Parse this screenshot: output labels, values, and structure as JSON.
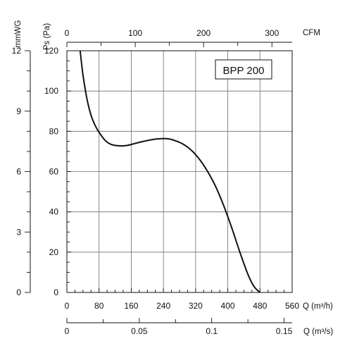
{
  "chart_data": {
    "type": "line",
    "model_label": "BPP 200",
    "ylabel": "Ps (Pa)",
    "y2label": "mmWG",
    "xlabel_bottom": "Q (m³/h)",
    "xlabel_bottom2": "Q (m³/s)",
    "xlabel_top": "CFM",
    "ylim": [
      0,
      120
    ],
    "xlim": [
      0,
      560
    ],
    "grid": true,
    "y_ticks": [
      0,
      20,
      40,
      60,
      80,
      100,
      120
    ],
    "mmwg_ticks": [
      0,
      3,
      6,
      9,
      12
    ],
    "x_ticks": [
      0,
      80,
      160,
      240,
      320,
      400,
      480,
      560
    ],
    "cfm_ticks": [
      0,
      100,
      200,
      300
    ],
    "m3s_ticks": [
      "0",
      "0.05",
      "0.1",
      "0.15"
    ],
    "series": [
      {
        "x": [
          33,
          40,
          50,
          60,
          70,
          80,
          95,
          110,
          130,
          150,
          170,
          190,
          210,
          230,
          250,
          270,
          290,
          310,
          330,
          350,
          370,
          390,
          410,
          430,
          450,
          465,
          480
        ],
        "y": [
          120,
          108,
          96,
          88,
          83,
          79.5,
          75.5,
          73.5,
          72.8,
          73,
          74,
          75,
          75.8,
          76.3,
          76.3,
          75.3,
          73.5,
          70.5,
          66,
          60,
          52.5,
          43,
          32,
          20,
          9,
          3,
          0
        ],
        "color": "#111111"
      }
    ]
  }
}
